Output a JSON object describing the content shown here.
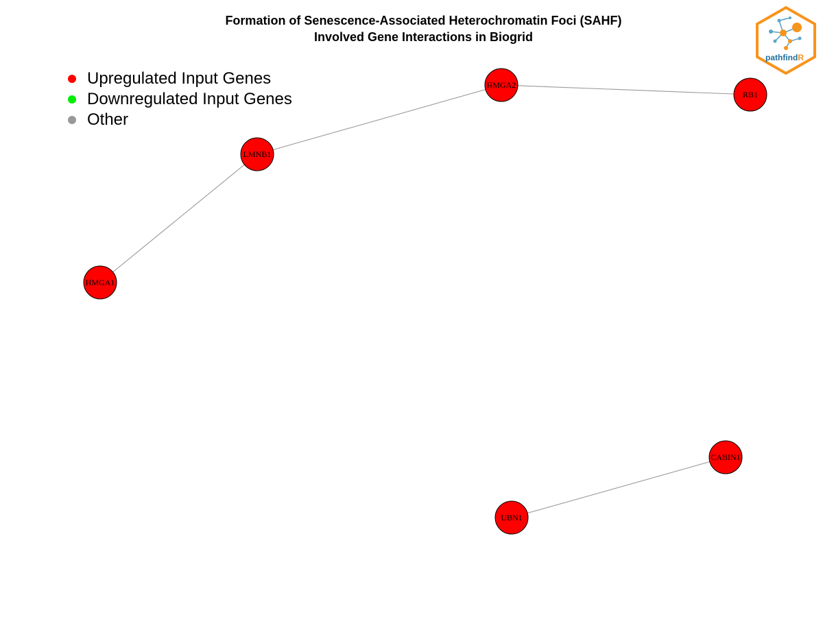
{
  "title": {
    "line1": "Formation of Senescence-Associated Heterochromatin Foci (SAHF)",
    "line2": "Involved Gene Interactions in Biogrid"
  },
  "legend": [
    {
      "label": "Upregulated Input Genes",
      "color": "#FF0000"
    },
    {
      "label": "Downregulated Input Genes",
      "color": "#00EE00"
    },
    {
      "label": "Other",
      "color": "#999999"
    }
  ],
  "network": {
    "node_color": "#FF0000",
    "edge_color": "#999999",
    "nodes": [
      {
        "id": "HMGA2",
        "label": "HMGA2",
        "category": "Upregulated Input Genes"
      },
      {
        "id": "RB1",
        "label": "RB1",
        "category": "Upregulated Input Genes"
      },
      {
        "id": "LMNB1",
        "label": "LMNB1",
        "category": "Upregulated Input Genes"
      },
      {
        "id": "HMGA1",
        "label": "HMGA1",
        "category": "Upregulated Input Genes"
      },
      {
        "id": "CABIN1",
        "label": "CABIN1",
        "category": "Upregulated Input Genes"
      },
      {
        "id": "UBN1",
        "label": "UBN1",
        "category": "Upregulated Input Genes"
      }
    ],
    "edges": [
      {
        "source": "HMGA2",
        "target": "RB1"
      },
      {
        "source": "LMNB1",
        "target": "HMGA2"
      },
      {
        "source": "HMGA1",
        "target": "LMNB1"
      },
      {
        "source": "UBN1",
        "target": "CABIN1"
      }
    ]
  },
  "logo": {
    "text_main": "pathfind",
    "text_accent": "R",
    "border_color": "#F7941D",
    "text_color": "#1F6E9C",
    "node_color": "#F7941D",
    "edge_color": "#5BA4C8"
  }
}
